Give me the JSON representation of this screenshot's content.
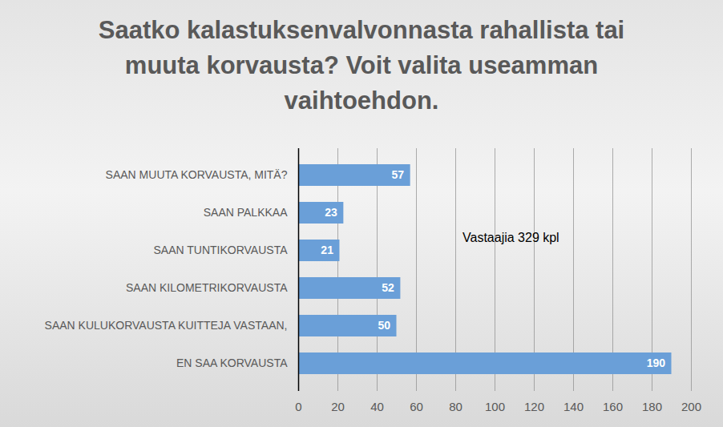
{
  "chart_data": {
    "type": "bar",
    "orientation": "horizontal",
    "title": "Saatko kalastuksenvalvonnasta rahallista tai muuta korvausta? Voit valita useamman vaihtoehdon.",
    "annotations": [
      "Vastaajia 329 kpl"
    ],
    "categories": [
      "SAAN MUUTA KORVAUSTA, MITÄ?",
      "SAAN PALKKAA",
      "SAAN TUNTIKORVAUSTA",
      "SAAN KILOMETRIKORVAUSTA",
      "SAAN KULUKORVAUSTA KUITTEJA VASTAAN,",
      "EN SAA KORVAUSTA"
    ],
    "values": [
      57,
      23,
      21,
      52,
      50,
      190
    ],
    "color": "#6a9fd8",
    "xlim": [
      0,
      200
    ],
    "xticks": [
      0,
      20,
      40,
      60,
      80,
      100,
      120,
      140,
      160,
      180,
      200
    ],
    "grid": true,
    "data_labels": true
  }
}
